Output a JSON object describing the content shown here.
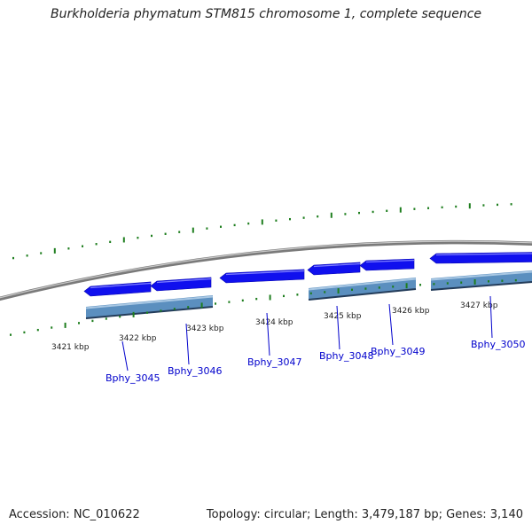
{
  "title": "Burkholderia phymatum STM815 chromosome 1, complete sequence",
  "footer": {
    "accession": "Accession: NC_010622",
    "summary": "Topology: circular; Length: 3,479,187 bp; Genes: 3,140"
  },
  "colors": {
    "gene_arrow": "#1010ee",
    "cds_bar": "#5b8fbf",
    "tick": "#1e7e1e",
    "backbone": "#808080",
    "gene_label": "#0000cc"
  },
  "ticks": {
    "labels": [
      {
        "text": "3421 kbp",
        "kbp": 3421
      },
      {
        "text": "3422 kbp",
        "kbp": 3422
      },
      {
        "text": "3423 kbp",
        "kbp": 3423
      },
      {
        "text": "3424 kbp",
        "kbp": 3424
      },
      {
        "text": "3425 kbp",
        "kbp": 3425
      },
      {
        "text": "3426 kbp",
        "kbp": 3426
      },
      {
        "text": "3427 kbp",
        "kbp": 3427
      }
    ]
  },
  "genes": [
    {
      "label": "Bphy_3045",
      "strand": "-"
    },
    {
      "label": "Bphy_3046",
      "strand": "-"
    },
    {
      "label": "Bphy_3047",
      "strand": "-"
    },
    {
      "label": "Bphy_3048",
      "strand": "-"
    },
    {
      "label": "Bphy_3049",
      "strand": "-"
    },
    {
      "label": "Bphy_3050",
      "strand": "-"
    }
  ]
}
